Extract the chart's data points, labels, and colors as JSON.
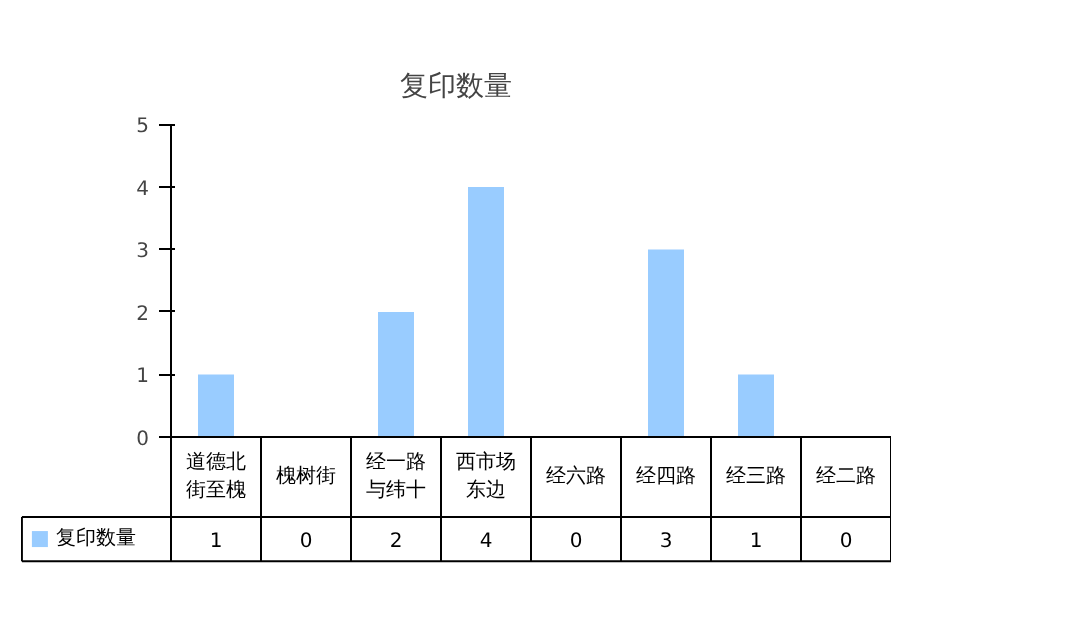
{
  "chart_data": {
    "type": "bar",
    "title": "复印数量",
    "categories": [
      "道德北街至槐",
      "槐树街",
      "经一路与纬十",
      "西市场东边",
      "经六路",
      "经四路",
      "经三路",
      "经二路"
    ],
    "series": [
      {
        "name": "复印数量",
        "color": "#99ccff",
        "values": [
          1,
          0,
          2,
          4,
          0,
          3,
          1,
          0
        ]
      }
    ],
    "ylim": [
      0,
      5
    ],
    "yticks": [
      0,
      1,
      2,
      3,
      4,
      5
    ],
    "grid": false,
    "legend": "bottom",
    "data_labels": true
  }
}
